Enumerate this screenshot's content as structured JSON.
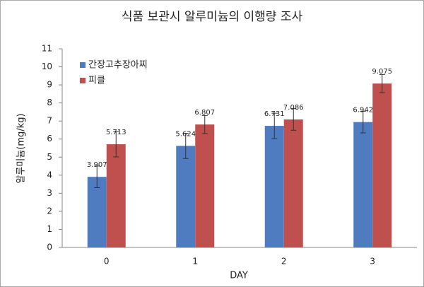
{
  "chart_data": {
    "type": "bar",
    "title": "식품 보관시 알루미늄의 이행량 조사",
    "x_label": "DAY",
    "y_label": "알루미늄(mg/kg)",
    "categories": [
      "0",
      "1",
      "2",
      "3"
    ],
    "series": [
      {
        "name": "간장고추장아찌",
        "color": "#4f7cc0",
        "values": [
          3.907,
          5.624,
          6.731,
          6.942
        ],
        "errors": [
          0.6,
          0.7,
          0.7,
          0.6
        ]
      },
      {
        "name": "피클",
        "color": "#c0504d",
        "values": [
          5.713,
          6.807,
          7.086,
          9.075
        ],
        "errors": [
          0.7,
          0.5,
          0.6,
          0.5
        ]
      }
    ],
    "ylim": [
      0,
      11
    ],
    "yticks": [
      0,
      1,
      2,
      3,
      4,
      5,
      6,
      7,
      8,
      9,
      10,
      11
    ],
    "grid": false,
    "legend": "upper left"
  }
}
